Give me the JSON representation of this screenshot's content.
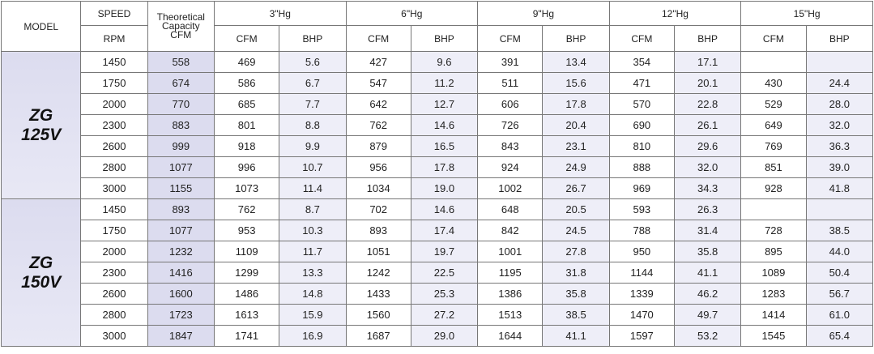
{
  "table": {
    "header": {
      "model": "MODEL",
      "speed": "SPEED",
      "rpm": "RPM",
      "theoretical": "Theoretical\nCapacity\nCFM",
      "vacuum": [
        "3\"Hg",
        "6\"Hg",
        "9\"Hg",
        "12\"Hg",
        "15\"Hg"
      ],
      "cfm": "CFM",
      "bhp": "BHP"
    },
    "groups": [
      {
        "model": "ZG\n125V",
        "rows": [
          [
            "1450",
            "558",
            "469",
            "5.6",
            "427",
            "9.6",
            "391",
            "13.4",
            "354",
            "17.1",
            null,
            null
          ],
          [
            "1750",
            "674",
            "586",
            "6.7",
            "547",
            "11.2",
            "511",
            "15.6",
            "471",
            "20.1",
            "430",
            "24.4"
          ],
          [
            "2000",
            "770",
            "685",
            "7.7",
            "642",
            "12.7",
            "606",
            "17.8",
            "570",
            "22.8",
            "529",
            "28.0"
          ],
          [
            "2300",
            "883",
            "801",
            "8.8",
            "762",
            "14.6",
            "726",
            "20.4",
            "690",
            "26.1",
            "649",
            "32.0"
          ],
          [
            "2600",
            "999",
            "918",
            "9.9",
            "879",
            "16.5",
            "843",
            "23.1",
            "810",
            "29.6",
            "769",
            "36.3"
          ],
          [
            "2800",
            "1077",
            "996",
            "10.7",
            "956",
            "17.8",
            "924",
            "24.9",
            "888",
            "32.0",
            "851",
            "39.0"
          ],
          [
            "3000",
            "1155",
            "1073",
            "11.4",
            "1034",
            "19.0",
            "1002",
            "26.7",
            "969",
            "34.3",
            "928",
            "41.8"
          ]
        ]
      },
      {
        "model": "ZG\n150V",
        "rows": [
          [
            "1450",
            "893",
            "762",
            "8.7",
            "702",
            "14.6",
            "648",
            "20.5",
            "593",
            "26.3",
            null,
            null
          ],
          [
            "1750",
            "1077",
            "953",
            "10.3",
            "893",
            "17.4",
            "842",
            "24.5",
            "788",
            "31.4",
            "728",
            "38.5"
          ],
          [
            "2000",
            "1232",
            "1109",
            "11.7",
            "1051",
            "19.7",
            "1001",
            "27.8",
            "950",
            "35.8",
            "895",
            "44.0"
          ],
          [
            "2300",
            "1416",
            "1299",
            "13.3",
            "1242",
            "22.5",
            "1195",
            "31.8",
            "1144",
            "41.1",
            "1089",
            "50.4"
          ],
          [
            "2600",
            "1600",
            "1486",
            "14.8",
            "1433",
            "25.3",
            "1386",
            "35.8",
            "1339",
            "46.2",
            "1283",
            "56.7"
          ],
          [
            "2800",
            "1723",
            "1613",
            "15.9",
            "1560",
            "27.2",
            "1513",
            "38.5",
            "1470",
            "49.7",
            "1414",
            "61.0"
          ],
          [
            "3000",
            "1847",
            "1741",
            "16.9",
            "1687",
            "29.0",
            "1644",
            "41.1",
            "1597",
            "53.2",
            "1545",
            "65.4"
          ]
        ]
      }
    ]
  }
}
